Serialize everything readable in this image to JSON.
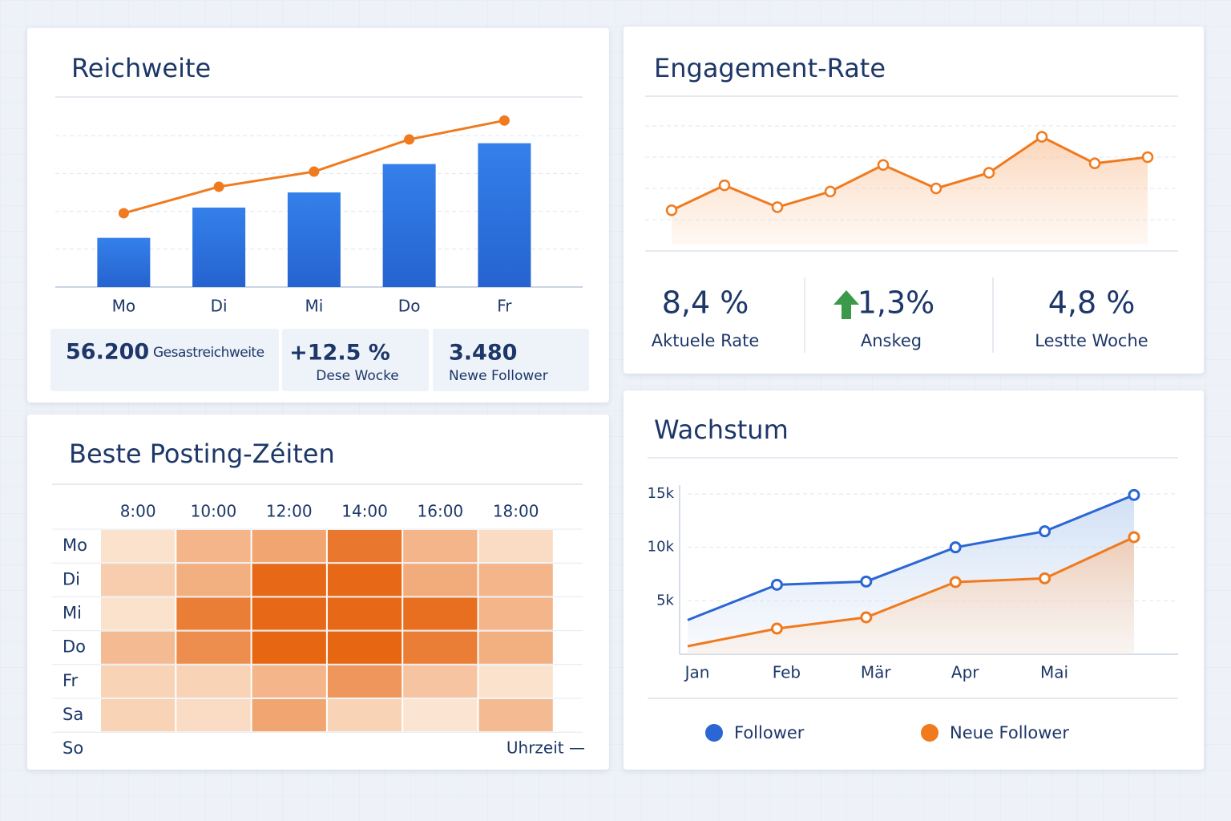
{
  "chart_data": [
    {
      "type": "bar_line",
      "title": "Reichweite",
      "categories": [
        "Mo",
        "Di",
        "Mi",
        "Do",
        "Fr"
      ],
      "series": [
        {
          "type": "bar",
          "color": "#2f74e0",
          "values": [
            1.3,
            2.1,
            2.5,
            3.25,
            3.8
          ]
        },
        {
          "type": "line",
          "color": "#f07a1e",
          "values": [
            1.95,
            2.65,
            3.05,
            3.9,
            4.4
          ]
        }
      ],
      "ylim": [
        0,
        5
      ],
      "yticks": [
        1,
        2,
        3,
        4
      ],
      "grid": true,
      "stats": [
        {
          "value": "56.200",
          "label": "Gesastreichweite"
        },
        {
          "value": "+12.5 %",
          "label": "Dese Wocke"
        },
        {
          "value": "3.480",
          "label": "Newe Follower"
        }
      ]
    },
    {
      "type": "area",
      "title": "Engagement-Rate",
      "color": "#f07a1e",
      "values": [
        1.3,
        2.1,
        1.4,
        1.9,
        2.75,
        2.0,
        2.5,
        3.65,
        2.8,
        3.0
      ],
      "ylim": [
        0,
        5
      ],
      "yticks": [
        1,
        2,
        3,
        4
      ],
      "grid": true,
      "stats": [
        {
          "value": "8,4 %",
          "label": "Aktuele Rate"
        },
        {
          "value": "1,3%",
          "label": "Anskeg"
        },
        {
          "value": "4,8 %",
          "label": "Lestte Woche"
        }
      ]
    },
    {
      "type": "heatmap",
      "title": "Beste Posting-Zéiten",
      "columns": [
        "8:00",
        "10:00",
        "12:00",
        "14:00",
        "16:00",
        "18:00"
      ],
      "rows": [
        "Mo",
        "Di",
        "Mi",
        "Do",
        "Fr",
        "Sa",
        "So"
      ],
      "values": [
        [
          0.5,
          2,
          2.5,
          4,
          2,
          0.7
        ],
        [
          1.2,
          2.2,
          4.5,
          4.5,
          2.3,
          2
        ],
        [
          0.5,
          3.8,
          4.5,
          4.5,
          4.3,
          2
        ],
        [
          1.8,
          3.3,
          4.6,
          4.6,
          3.8,
          2.2
        ],
        [
          1,
          1,
          2,
          3,
          1.5,
          0.5
        ],
        [
          1,
          0.7,
          2.5,
          1,
          0.4,
          1.8
        ],
        [
          null,
          null,
          null,
          null,
          null,
          null
        ]
      ],
      "clim": [
        0,
        5
      ],
      "colors": [
        "#fdf1e4",
        "#e45a00"
      ],
      "xlabel": "Uhrzeit —"
    },
    {
      "type": "line",
      "title": "Wachstum",
      "categories": [
        "Jan",
        "Feb",
        "Mär",
        "Apr",
        "Mai",
        null
      ],
      "series": [
        {
          "name": "Follower",
          "color": "#2a66d4",
          "values": [
            3200,
            6500,
            6800,
            10000,
            11500,
            14900
          ]
        },
        {
          "name": "Neue Follower",
          "color": "#f07a1e",
          "values": [
            750,
            2400,
            3450,
            6750,
            7100,
            10950
          ]
        }
      ],
      "ylim": [
        0,
        15000
      ],
      "yticks": [
        {
          "value": 5000,
          "label": "5k"
        },
        {
          "value": 10000,
          "label": "10k"
        },
        {
          "value": 15000,
          "label": "15k"
        }
      ],
      "grid": true,
      "legend": "bottom"
    }
  ]
}
